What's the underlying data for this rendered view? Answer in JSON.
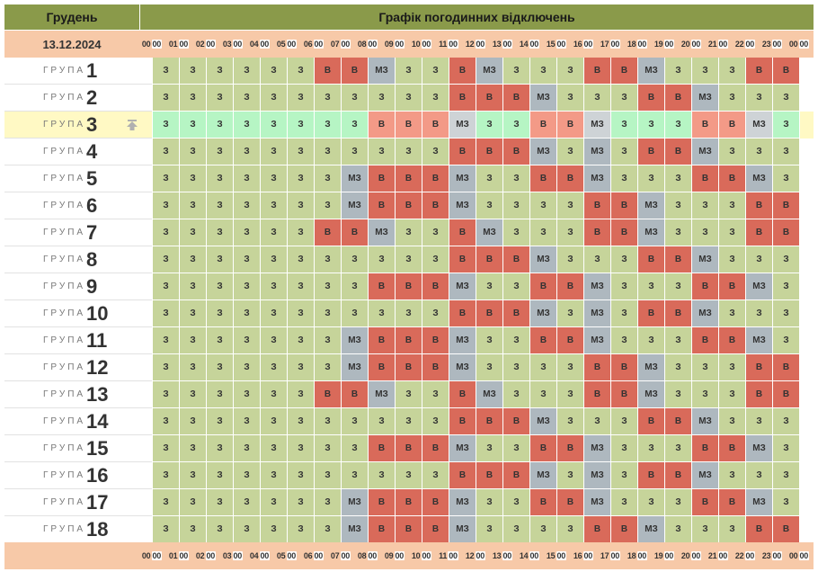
{
  "header": {
    "month": "Грудень",
    "title": "Графік погодинних відключень"
  },
  "date": "13.12.2024",
  "time_labels": [
    {
      "h": "00",
      "m": "00"
    },
    {
      "h": "01",
      "m": "00"
    },
    {
      "h": "02",
      "m": "00"
    },
    {
      "h": "03",
      "m": "00"
    },
    {
      "h": "04",
      "m": "00"
    },
    {
      "h": "05",
      "m": "00"
    },
    {
      "h": "06",
      "m": "00"
    },
    {
      "h": "07",
      "m": "00"
    },
    {
      "h": "08",
      "m": "00"
    },
    {
      "h": "09",
      "m": "00"
    },
    {
      "h": "10",
      "m": "00"
    },
    {
      "h": "11",
      "m": "00"
    },
    {
      "h": "12",
      "m": "00"
    },
    {
      "h": "13",
      "m": "00"
    },
    {
      "h": "14",
      "m": "00"
    },
    {
      "h": "15",
      "m": "00"
    },
    {
      "h": "16",
      "m": "00"
    },
    {
      "h": "17",
      "m": "00"
    },
    {
      "h": "18",
      "m": "00"
    },
    {
      "h": "19",
      "m": "00"
    },
    {
      "h": "20",
      "m": "00"
    },
    {
      "h": "21",
      "m": "00"
    },
    {
      "h": "22",
      "m": "00"
    },
    {
      "h": "23",
      "m": "00"
    },
    {
      "h": "00",
      "m": "00"
    }
  ],
  "group_word": "ГРУПА",
  "highlighted_group": 3,
  "pin_icon": "pin-top-icon",
  "status_legend": {
    "З": "#c6d49a",
    "В": "#d96a5a",
    "МЗ": "#aeb8bf"
  },
  "groups": [
    {
      "number": "1",
      "slots": [
        "З",
        "З",
        "З",
        "З",
        "З",
        "З",
        "В",
        "В",
        "МЗ",
        "З",
        "З",
        "В",
        "МЗ",
        "З",
        "З",
        "З",
        "В",
        "В",
        "МЗ",
        "З",
        "З",
        "З",
        "В",
        "В"
      ]
    },
    {
      "number": "2",
      "slots": [
        "З",
        "З",
        "З",
        "З",
        "З",
        "З",
        "З",
        "З",
        "З",
        "З",
        "З",
        "В",
        "В",
        "В",
        "МЗ",
        "З",
        "З",
        "З",
        "В",
        "В",
        "МЗ",
        "З",
        "З",
        "З"
      ]
    },
    {
      "number": "3",
      "slots": [
        "З",
        "З",
        "З",
        "З",
        "З",
        "З",
        "З",
        "З",
        "В",
        "В",
        "В",
        "МЗ",
        "З",
        "З",
        "В",
        "В",
        "МЗ",
        "З",
        "З",
        "З",
        "В",
        "В",
        "МЗ",
        "З"
      ]
    },
    {
      "number": "4",
      "slots": [
        "З",
        "З",
        "З",
        "З",
        "З",
        "З",
        "З",
        "З",
        "З",
        "З",
        "З",
        "В",
        "В",
        "В",
        "МЗ",
        "З",
        "МЗ",
        "З",
        "В",
        "В",
        "МЗ",
        "З",
        "З",
        "З"
      ]
    },
    {
      "number": "5",
      "slots": [
        "З",
        "З",
        "З",
        "З",
        "З",
        "З",
        "З",
        "МЗ",
        "В",
        "В",
        "В",
        "МЗ",
        "З",
        "З",
        "В",
        "В",
        "МЗ",
        "З",
        "З",
        "З",
        "В",
        "В",
        "МЗ",
        "З"
      ]
    },
    {
      "number": "6",
      "slots": [
        "З",
        "З",
        "З",
        "З",
        "З",
        "З",
        "З",
        "МЗ",
        "В",
        "В",
        "В",
        "МЗ",
        "З",
        "З",
        "З",
        "З",
        "В",
        "В",
        "МЗ",
        "З",
        "З",
        "З",
        "В",
        "В"
      ]
    },
    {
      "number": "7",
      "slots": [
        "З",
        "З",
        "З",
        "З",
        "З",
        "З",
        "В",
        "В",
        "МЗ",
        "З",
        "З",
        "В",
        "МЗ",
        "З",
        "З",
        "З",
        "В",
        "В",
        "МЗ",
        "З",
        "З",
        "З",
        "В",
        "В"
      ]
    },
    {
      "number": "8",
      "slots": [
        "З",
        "З",
        "З",
        "З",
        "З",
        "З",
        "З",
        "З",
        "З",
        "З",
        "З",
        "В",
        "В",
        "В",
        "МЗ",
        "З",
        "З",
        "З",
        "В",
        "В",
        "МЗ",
        "З",
        "З",
        "З"
      ]
    },
    {
      "number": "9",
      "slots": [
        "З",
        "З",
        "З",
        "З",
        "З",
        "З",
        "З",
        "З",
        "В",
        "В",
        "В",
        "МЗ",
        "З",
        "З",
        "В",
        "В",
        "МЗ",
        "З",
        "З",
        "З",
        "В",
        "В",
        "МЗ",
        "З"
      ]
    },
    {
      "number": "10",
      "slots": [
        "З",
        "З",
        "З",
        "З",
        "З",
        "З",
        "З",
        "З",
        "З",
        "З",
        "З",
        "В",
        "В",
        "В",
        "МЗ",
        "З",
        "МЗ",
        "З",
        "В",
        "В",
        "МЗ",
        "З",
        "З",
        "З"
      ]
    },
    {
      "number": "11",
      "slots": [
        "З",
        "З",
        "З",
        "З",
        "З",
        "З",
        "З",
        "МЗ",
        "В",
        "В",
        "В",
        "МЗ",
        "З",
        "З",
        "В",
        "В",
        "МЗ",
        "З",
        "З",
        "З",
        "В",
        "В",
        "МЗ",
        "З"
      ]
    },
    {
      "number": "12",
      "slots": [
        "З",
        "З",
        "З",
        "З",
        "З",
        "З",
        "З",
        "МЗ",
        "В",
        "В",
        "В",
        "МЗ",
        "З",
        "З",
        "З",
        "З",
        "В",
        "В",
        "МЗ",
        "З",
        "З",
        "З",
        "В",
        "В"
      ]
    },
    {
      "number": "13",
      "slots": [
        "З",
        "З",
        "З",
        "З",
        "З",
        "З",
        "В",
        "В",
        "МЗ",
        "З",
        "З",
        "В",
        "МЗ",
        "З",
        "З",
        "З",
        "В",
        "В",
        "МЗ",
        "З",
        "З",
        "З",
        "В",
        "В"
      ]
    },
    {
      "number": "14",
      "slots": [
        "З",
        "З",
        "З",
        "З",
        "З",
        "З",
        "З",
        "З",
        "З",
        "З",
        "З",
        "В",
        "В",
        "В",
        "МЗ",
        "З",
        "З",
        "З",
        "В",
        "В",
        "МЗ",
        "З",
        "З",
        "З"
      ]
    },
    {
      "number": "15",
      "slots": [
        "З",
        "З",
        "З",
        "З",
        "З",
        "З",
        "З",
        "З",
        "В",
        "В",
        "В",
        "МЗ",
        "З",
        "З",
        "В",
        "В",
        "МЗ",
        "З",
        "З",
        "З",
        "В",
        "В",
        "МЗ",
        "З"
      ]
    },
    {
      "number": "16",
      "slots": [
        "З",
        "З",
        "З",
        "З",
        "З",
        "З",
        "З",
        "З",
        "З",
        "З",
        "З",
        "В",
        "В",
        "В",
        "МЗ",
        "З",
        "МЗ",
        "З",
        "В",
        "В",
        "МЗ",
        "З",
        "З",
        "З"
      ]
    },
    {
      "number": "17",
      "slots": [
        "З",
        "З",
        "З",
        "З",
        "З",
        "З",
        "З",
        "МЗ",
        "В",
        "В",
        "В",
        "МЗ",
        "З",
        "З",
        "В",
        "В",
        "МЗ",
        "З",
        "З",
        "З",
        "В",
        "В",
        "МЗ",
        "З"
      ]
    },
    {
      "number": "18",
      "slots": [
        "З",
        "З",
        "З",
        "З",
        "З",
        "З",
        "З",
        "МЗ",
        "В",
        "В",
        "В",
        "МЗ",
        "З",
        "З",
        "З",
        "З",
        "В",
        "В",
        "МЗ",
        "З",
        "З",
        "З",
        "В",
        "В"
      ]
    }
  ]
}
